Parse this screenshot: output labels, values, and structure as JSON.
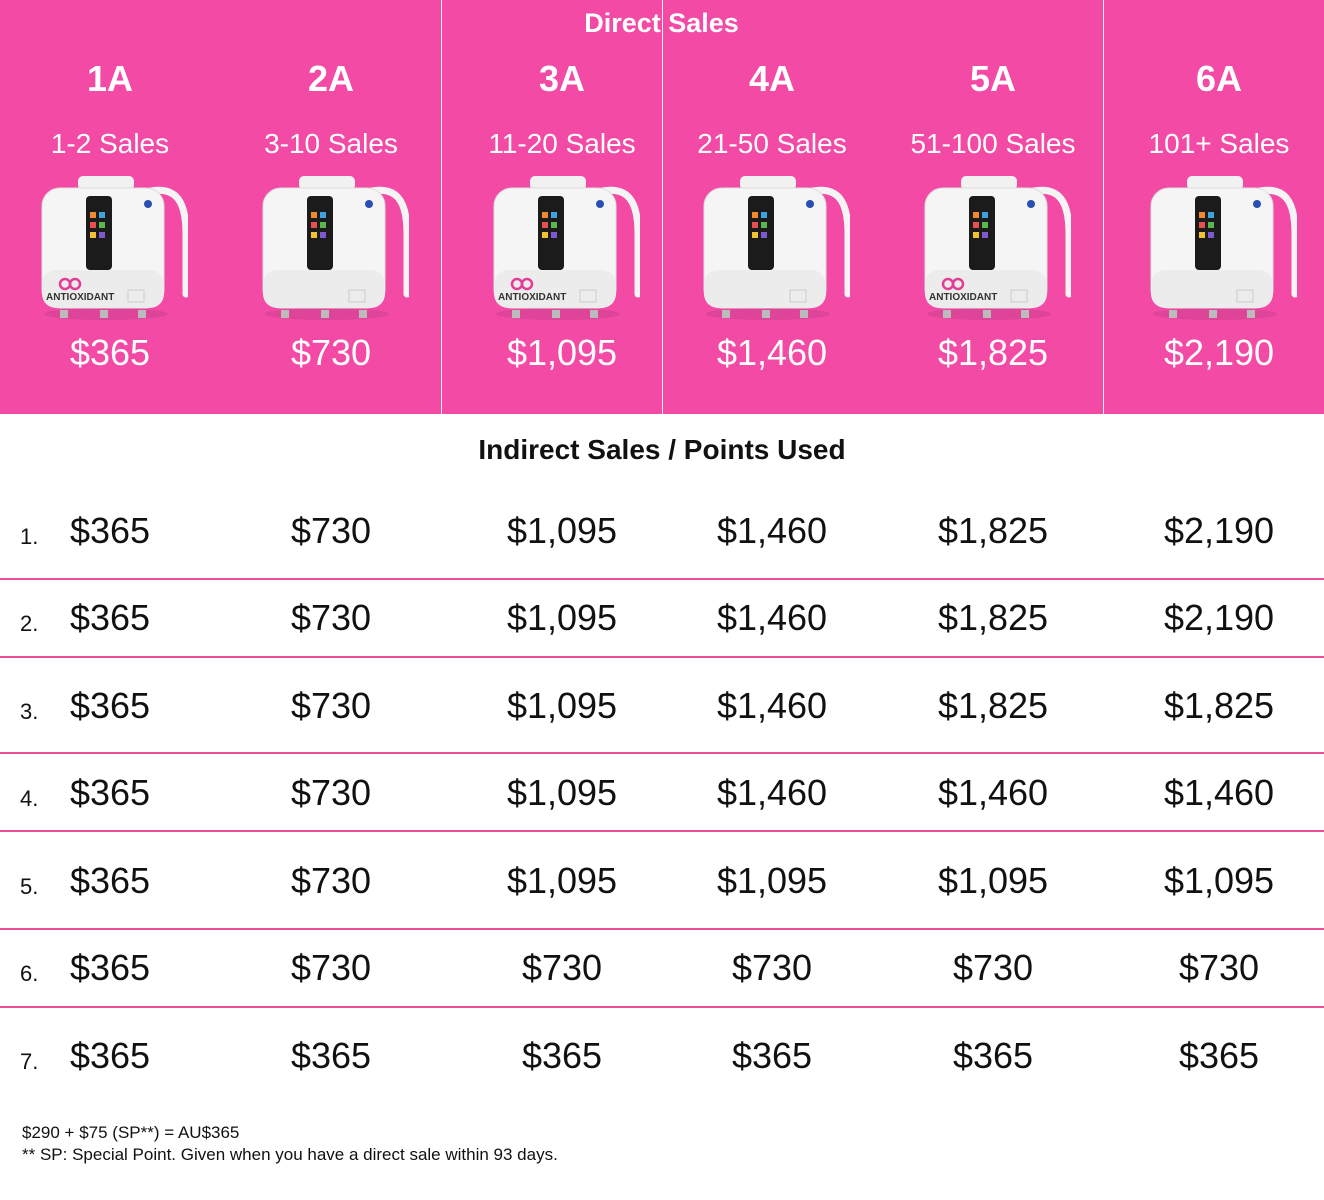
{
  "direct_sales": {
    "title": "Direct Sales",
    "tiers": [
      {
        "code": "1A",
        "range": "1-2 Sales",
        "price": "$365",
        "badge": "ANTIOXIDANT"
      },
      {
        "code": "2A",
        "range": "3-10 Sales",
        "price": "$730",
        "badge": ""
      },
      {
        "code": "3A",
        "range": "11-20 Sales",
        "price": "$1,095",
        "badge": "ANTIOXIDANT"
      },
      {
        "code": "4A",
        "range": "21-50 Sales",
        "price": "$1,460",
        "badge": ""
      },
      {
        "code": "5A",
        "range": "51-100 Sales",
        "price": "$1,825",
        "badge": "ANTIOXIDANT"
      },
      {
        "code": "6A",
        "range": "101+ Sales",
        "price": "$2,190",
        "badge": ""
      }
    ]
  },
  "indirect_sales": {
    "title": "Indirect Sales / Points Used",
    "rows": [
      {
        "label": "1.",
        "values": [
          "$365",
          "$730",
          "$1,095",
          "$1,460",
          "$1,825",
          "$2,190"
        ]
      },
      {
        "label": "2.",
        "values": [
          "$365",
          "$730",
          "$1,095",
          "$1,460",
          "$1,825",
          "$2,190"
        ]
      },
      {
        "label": "3.",
        "values": [
          "$365",
          "$730",
          "$1,095",
          "$1,460",
          "$1,825",
          "$1,825"
        ]
      },
      {
        "label": "4.",
        "values": [
          "$365",
          "$730",
          "$1,095",
          "$1,460",
          "$1,460",
          "$1,460"
        ]
      },
      {
        "label": "5.",
        "values": [
          "$365",
          "$730",
          "$1,095",
          "$1,095",
          "$1,095",
          "$1,095"
        ]
      },
      {
        "label": "6.",
        "values": [
          "$365",
          "$730",
          "$730",
          "$730",
          "$730",
          "$730"
        ]
      },
      {
        "label": "7.",
        "values": [
          "$365",
          "$365",
          "$365",
          "$365",
          "$365",
          "$365"
        ]
      }
    ]
  },
  "footnotes": {
    "line1": "$290 + $75 (SP**) = AU$365",
    "line2": "** SP: Special Point. Given when you have a direct sale within 93 days."
  },
  "colors": {
    "accent": "#f24aa5",
    "divider": "#ea4f97",
    "text": "#111111"
  },
  "icons": {
    "product": "water-ionizer-machine-icon"
  }
}
